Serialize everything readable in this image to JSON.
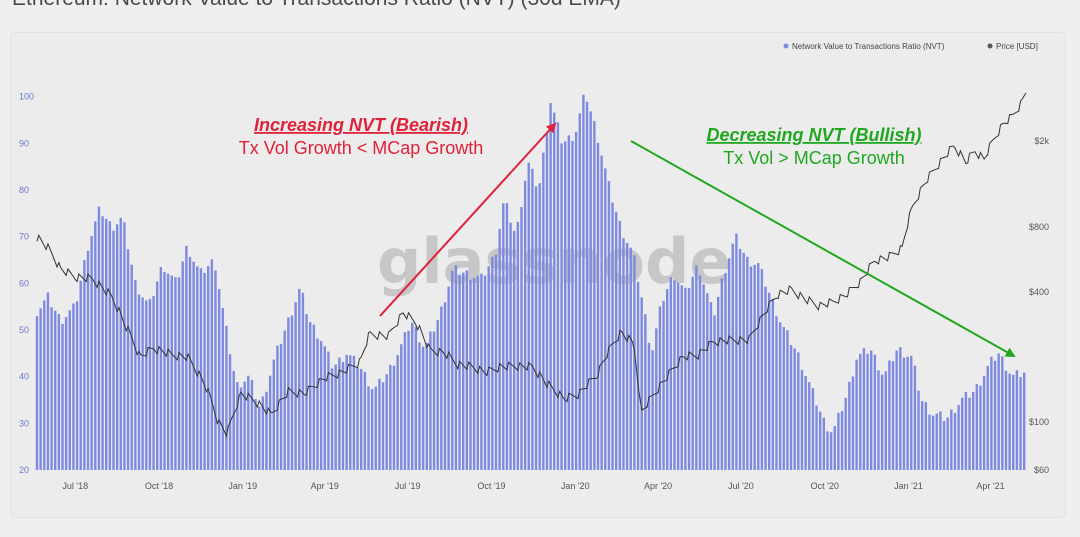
{
  "page": {
    "title": "Ethereum: Network Value to Transactions Ratio (NVT) (30d EMA)",
    "watermark": "glassnode"
  },
  "colors": {
    "nvt_bars": "#7d8ae0",
    "price_line": "#333333",
    "bearish": "#e0213a",
    "bullish": "#1fa81f"
  },
  "legend": {
    "nvt": "Network Value to Transactions Ratio (NVT)",
    "price": "Price [USD]"
  },
  "annotations": {
    "bearish_title": "Increasing NVT (Bearish)",
    "bearish_sub": "Tx Vol Growth < MCap Growth",
    "bullish_title": "Decreasing NVT (Bullish)",
    "bullish_sub": "Tx Vol > MCap Growth"
  },
  "chart_data": {
    "type": "bar",
    "title": "Ethereum: Network Value to Transactions Ratio (NVT) (30d EMA)",
    "x_ticks": [
      "Jul '18",
      "Oct '18",
      "Jan '19",
      "Apr '19",
      "Jul '19",
      "Oct '19",
      "Jan '20",
      "Apr '20",
      "Jul '20",
      "Oct '20",
      "Jan '21",
      "Apr '21"
    ],
    "x_range": [
      "2018-05-20",
      "2021-05-10"
    ],
    "y_left": {
      "ticks": [
        "20",
        "30",
        "40",
        "50",
        "60",
        "70",
        "80",
        "90",
        "100"
      ],
      "range": [
        20,
        104
      ]
    },
    "y_right": {
      "scale": "log",
      "ticks": [
        "$60",
        "$100",
        "$400",
        "$800",
        "$2k"
      ],
      "tick_values": [
        60,
        100,
        400,
        800,
        2000
      ],
      "range": [
        60,
        3000
      ]
    },
    "grid": false,
    "legend_position": "top-right",
    "series": [
      {
        "name": "Network Value to Transactions Ratio (NVT)",
        "type": "bar",
        "axis": "left",
        "points": [
          [
            "2018-05-20",
            54
          ],
          [
            "2018-06-01",
            57
          ],
          [
            "2018-06-15",
            52
          ],
          [
            "2018-07-01",
            55
          ],
          [
            "2018-07-15",
            68
          ],
          [
            "2018-07-28",
            76
          ],
          [
            "2018-08-10",
            72
          ],
          [
            "2018-08-22",
            74
          ],
          [
            "2018-09-05",
            60
          ],
          [
            "2018-09-20",
            55
          ],
          [
            "2018-10-05",
            64
          ],
          [
            "2018-10-20",
            60
          ],
          [
            "2018-11-01",
            68
          ],
          [
            "2018-11-15",
            62
          ],
          [
            "2018-12-01",
            65
          ],
          [
            "2018-12-12",
            52
          ],
          [
            "2018-12-25",
            38
          ],
          [
            "2019-01-08",
            40
          ],
          [
            "2019-01-20",
            33
          ],
          [
            "2019-02-05",
            44
          ],
          [
            "2019-02-20",
            52
          ],
          [
            "2019-03-05",
            59
          ],
          [
            "2019-03-15",
            52
          ],
          [
            "2019-03-28",
            48
          ],
          [
            "2019-04-10",
            42
          ],
          [
            "2019-04-25",
            45
          ],
          [
            "2019-05-10",
            42
          ],
          [
            "2019-05-25",
            37
          ],
          [
            "2019-06-10",
            41
          ],
          [
            "2019-06-25",
            47
          ],
          [
            "2019-07-05",
            52
          ],
          [
            "2019-07-20",
            46
          ],
          [
            "2019-08-05",
            53
          ],
          [
            "2019-08-20",
            63
          ],
          [
            "2019-09-05",
            62
          ],
          [
            "2019-09-20",
            61
          ],
          [
            "2019-10-05",
            66
          ],
          [
            "2019-10-15",
            78
          ],
          [
            "2019-10-28",
            70
          ],
          [
            "2019-11-10",
            86
          ],
          [
            "2019-11-22",
            80
          ],
          [
            "2019-12-05",
            99
          ],
          [
            "2019-12-18",
            90
          ],
          [
            "2020-01-01",
            92
          ],
          [
            "2020-01-12",
            101
          ],
          [
            "2020-01-25",
            92
          ],
          [
            "2020-02-08",
            80
          ],
          [
            "2020-02-20",
            72
          ],
          [
            "2020-03-05",
            66
          ],
          [
            "2020-03-15",
            56
          ],
          [
            "2020-03-25",
            45
          ],
          [
            "2020-04-05",
            56
          ],
          [
            "2020-04-18",
            62
          ],
          [
            "2020-05-01",
            58
          ],
          [
            "2020-05-15",
            64
          ],
          [
            "2020-06-01",
            53
          ],
          [
            "2020-06-12",
            62
          ],
          [
            "2020-06-25",
            70
          ],
          [
            "2020-07-08",
            65
          ],
          [
            "2020-07-20",
            64
          ],
          [
            "2020-08-01",
            58
          ],
          [
            "2020-08-15",
            51
          ],
          [
            "2020-09-01",
            45
          ],
          [
            "2020-09-15",
            38
          ],
          [
            "2020-10-01",
            30
          ],
          [
            "2020-10-10",
            28
          ],
          [
            "2020-10-25",
            36
          ],
          [
            "2020-11-05",
            44
          ],
          [
            "2020-11-20",
            46
          ],
          [
            "2020-12-05",
            40
          ],
          [
            "2020-12-20",
            46
          ],
          [
            "2021-01-05",
            44
          ],
          [
            "2021-01-15",
            35
          ],
          [
            "2021-01-28",
            32
          ],
          [
            "2021-02-12",
            31
          ],
          [
            "2021-02-28",
            35
          ],
          [
            "2021-03-15",
            37
          ],
          [
            "2021-04-01",
            43
          ],
          [
            "2021-04-10",
            45
          ],
          [
            "2021-04-25",
            40
          ],
          [
            "2021-05-10",
            41
          ]
        ]
      },
      {
        "name": "Price [USD]",
        "type": "line",
        "axis": "right",
        "points": [
          [
            "2018-05-20",
            720
          ],
          [
            "2018-06-01",
            640
          ],
          [
            "2018-06-15",
            510
          ],
          [
            "2018-07-01",
            470
          ],
          [
            "2018-07-20",
            460
          ],
          [
            "2018-08-10",
            380
          ],
          [
            "2018-08-25",
            280
          ],
          [
            "2018-09-10",
            200
          ],
          [
            "2018-09-25",
            220
          ],
          [
            "2018-10-15",
            205
          ],
          [
            "2018-11-01",
            200
          ],
          [
            "2018-11-20",
            150
          ],
          [
            "2018-12-05",
            100
          ],
          [
            "2018-12-15",
            88
          ],
          [
            "2018-12-30",
            135
          ],
          [
            "2019-01-15",
            125
          ],
          [
            "2019-02-01",
            108
          ],
          [
            "2019-02-20",
            138
          ],
          [
            "2019-03-10",
            136
          ],
          [
            "2019-04-01",
            160
          ],
          [
            "2019-04-20",
            170
          ],
          [
            "2019-05-10",
            190
          ],
          [
            "2019-05-20",
            255
          ],
          [
            "2019-06-10",
            250
          ],
          [
            "2019-06-26",
            320
          ],
          [
            "2019-07-10",
            290
          ],
          [
            "2019-07-25",
            215
          ],
          [
            "2019-08-10",
            210
          ],
          [
            "2019-08-25",
            185
          ],
          [
            "2019-09-10",
            180
          ],
          [
            "2019-09-25",
            170
          ],
          [
            "2019-10-10",
            180
          ],
          [
            "2019-10-28",
            182
          ],
          [
            "2019-11-15",
            180
          ],
          [
            "2019-12-01",
            150
          ],
          [
            "2019-12-20",
            128
          ],
          [
            "2020-01-05",
            135
          ],
          [
            "2020-01-25",
            165
          ],
          [
            "2020-02-10",
            225
          ],
          [
            "2020-02-20",
            260
          ],
          [
            "2020-03-05",
            230
          ],
          [
            "2020-03-13",
            110
          ],
          [
            "2020-03-25",
            130
          ],
          [
            "2020-04-10",
            160
          ],
          [
            "2020-04-28",
            200
          ],
          [
            "2020-05-15",
            205
          ],
          [
            "2020-06-01",
            235
          ],
          [
            "2020-06-20",
            240
          ],
          [
            "2020-07-10",
            240
          ],
          [
            "2020-07-25",
            310
          ],
          [
            "2020-08-10",
            390
          ],
          [
            "2020-08-25",
            410
          ],
          [
            "2020-09-10",
            370
          ],
          [
            "2020-09-25",
            345
          ],
          [
            "2020-10-10",
            360
          ],
          [
            "2020-10-25",
            390
          ],
          [
            "2020-11-10",
            450
          ],
          [
            "2020-11-25",
            560
          ],
          [
            "2020-12-10",
            580
          ],
          [
            "2020-12-25",
            640
          ],
          [
            "2021-01-05",
            980
          ],
          [
            "2021-01-20",
            1300
          ],
          [
            "2021-02-05",
            1600
          ],
          [
            "2021-02-20",
            1900
          ],
          [
            "2021-03-05",
            1600
          ],
          [
            "2021-03-15",
            1800
          ],
          [
            "2021-03-25",
            1650
          ],
          [
            "2021-04-05",
            2050
          ],
          [
            "2021-04-15",
            2400
          ],
          [
            "2021-04-25",
            2600
          ],
          [
            "2021-05-05",
            3000
          ],
          [
            "2021-05-10",
            3400
          ]
        ]
      }
    ]
  }
}
